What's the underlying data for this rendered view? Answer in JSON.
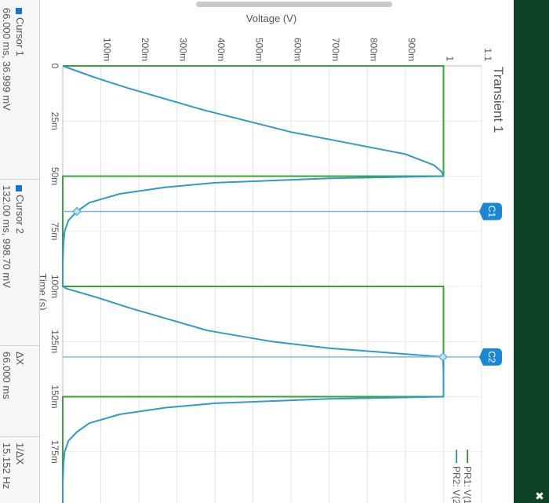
{
  "title": "Transient 1",
  "legend": [
    {
      "label": "PR1: V(1",
      "color": "#3aa334"
    },
    {
      "label": "PR2: V(2",
      "color": "#2f9bc8"
    }
  ],
  "cursors": [
    {
      "label": "C1",
      "x_ms": 66
    },
    {
      "label": "C2",
      "x_ms": 132
    }
  ],
  "cursor_table": {
    "cursor1_label": "Cursor 1",
    "cursor1_value": "66.000 ms, 36.999 mV",
    "cursor2_label": "Cursor 2",
    "cursor2_value": "132.00 ms, 998.70 mV",
    "dx_label": "ΔX",
    "dx_value": "66.000 ms",
    "inv_dx_label": "1/ΔX",
    "inv_dx_value": "15.152 Hz"
  },
  "colors": {
    "pr1": "#3aa334",
    "pr2": "#2f9bc8",
    "cursor": "#1a73c8",
    "side_panel": "#0f4226"
  },
  "chart_data": {
    "type": "line",
    "xlabel": "Time (s)",
    "ylabel": "Voltage (V)",
    "xlim": [
      0,
      200
    ],
    "ylim": [
      0,
      1.1
    ],
    "x_ticks": [
      "0",
      "25m",
      "50m",
      "75m",
      "100m",
      "125m",
      "150m",
      "175m",
      "2"
    ],
    "y_ticks": [
      "100m",
      "200m",
      "300m",
      "400m",
      "500m",
      "600m",
      "700m",
      "800m",
      "900m",
      "1",
      "1.1"
    ],
    "grid": true,
    "legend_position": "top-right",
    "series": [
      {
        "name": "PR1: V(1",
        "x": [
          0,
          0,
          50,
          50,
          100,
          100,
          150,
          150,
          200
        ],
        "y": [
          0,
          1,
          1,
          0,
          0,
          1,
          1,
          0,
          0
        ]
      },
      {
        "name": "PR2: V(2",
        "x": [
          0,
          5,
          10,
          20,
          30,
          35,
          40,
          45,
          48,
          50,
          51,
          53,
          55,
          58,
          62,
          66,
          70,
          75,
          80,
          90,
          100,
          101,
          105,
          110,
          120,
          125,
          128,
          130,
          132,
          140,
          150,
          151,
          153,
          155,
          158,
          162,
          166,
          170,
          175,
          180,
          190,
          200
        ],
        "y": [
          0,
          0.08,
          0.17,
          0.37,
          0.6,
          0.75,
          0.9,
          0.975,
          0.995,
          1.0,
          0.7,
          0.4,
          0.27,
          0.15,
          0.07,
          0.037,
          0.015,
          0.005,
          0.002,
          0.0,
          0.0,
          0.01,
          0.09,
          0.18,
          0.38,
          0.55,
          0.7,
          0.85,
          0.9987,
          1.0,
          1.0,
          0.7,
          0.4,
          0.27,
          0.15,
          0.07,
          0.037,
          0.015,
          0.005,
          0.002,
          0.0,
          0.0
        ]
      }
    ]
  }
}
